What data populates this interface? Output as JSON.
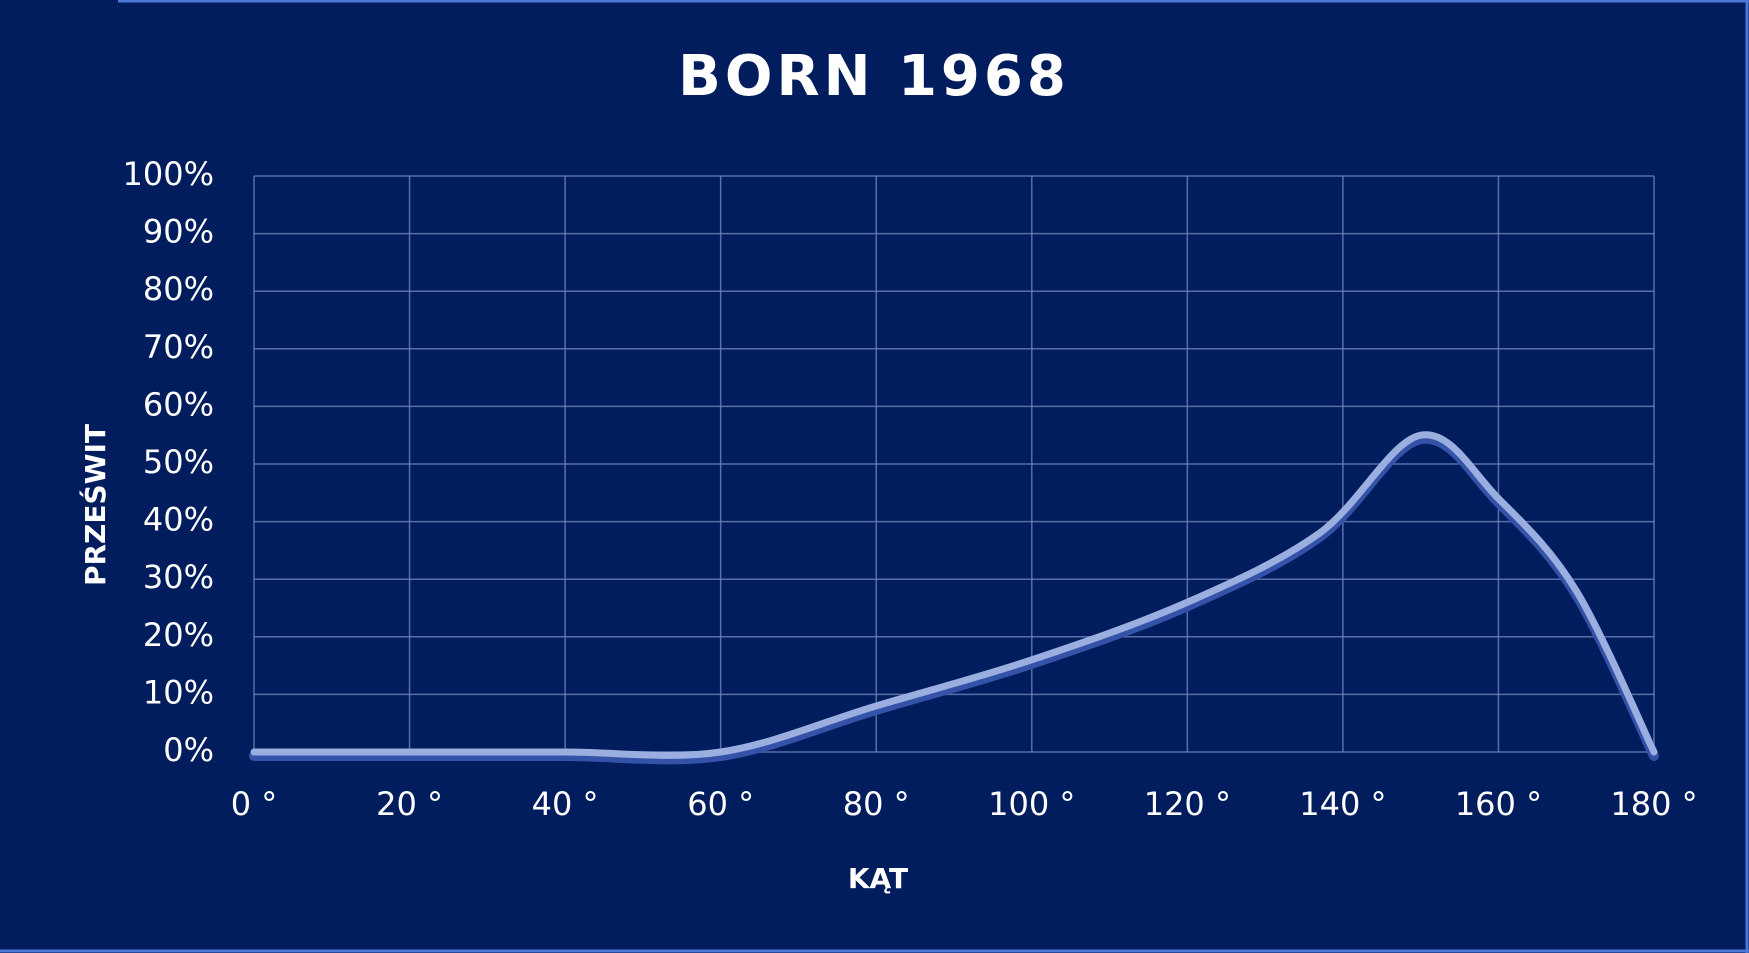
{
  "chart_data": {
    "type": "line",
    "title": "BORN 1968",
    "x_label": "KĄT",
    "y_label": "PRZEŚWIT",
    "x": [
      0,
      20,
      40,
      60,
      80,
      100,
      120,
      137,
      150,
      160,
      170,
      180
    ],
    "values": [
      0,
      0,
      0,
      0,
      8,
      16,
      26,
      38,
      55,
      44,
      28,
      0
    ],
    "color": "#9aaee0",
    "xlim": [
      0,
      180
    ],
    "xticks": [
      {
        "value": 0,
        "label": "0 °"
      },
      {
        "value": 20,
        "label": "20 °"
      },
      {
        "value": 40,
        "label": "40 °"
      },
      {
        "value": 60,
        "label": "60 °"
      },
      {
        "value": 80,
        "label": "80 °"
      },
      {
        "value": 100,
        "label": "100 °"
      },
      {
        "value": 120,
        "label": "120 °"
      },
      {
        "value": 140,
        "label": "140 °"
      },
      {
        "value": 160,
        "label": "160 °"
      },
      {
        "value": 180,
        "label": "180 °"
      }
    ],
    "ylim": [
      0,
      100
    ],
    "yticks": [
      {
        "value": 0,
        "label": "0%"
      },
      {
        "value": 10,
        "label": "10%"
      },
      {
        "value": 20,
        "label": "20%"
      },
      {
        "value": 30,
        "label": "30%"
      },
      {
        "value": 40,
        "label": "40%"
      },
      {
        "value": 50,
        "label": "50%"
      },
      {
        "value": 60,
        "label": "60%"
      },
      {
        "value": 70,
        "label": "70%"
      },
      {
        "value": 80,
        "label": "80%"
      },
      {
        "value": 90,
        "label": "90%"
      },
      {
        "value": 100,
        "label": "100%"
      }
    ],
    "grid": true
  }
}
